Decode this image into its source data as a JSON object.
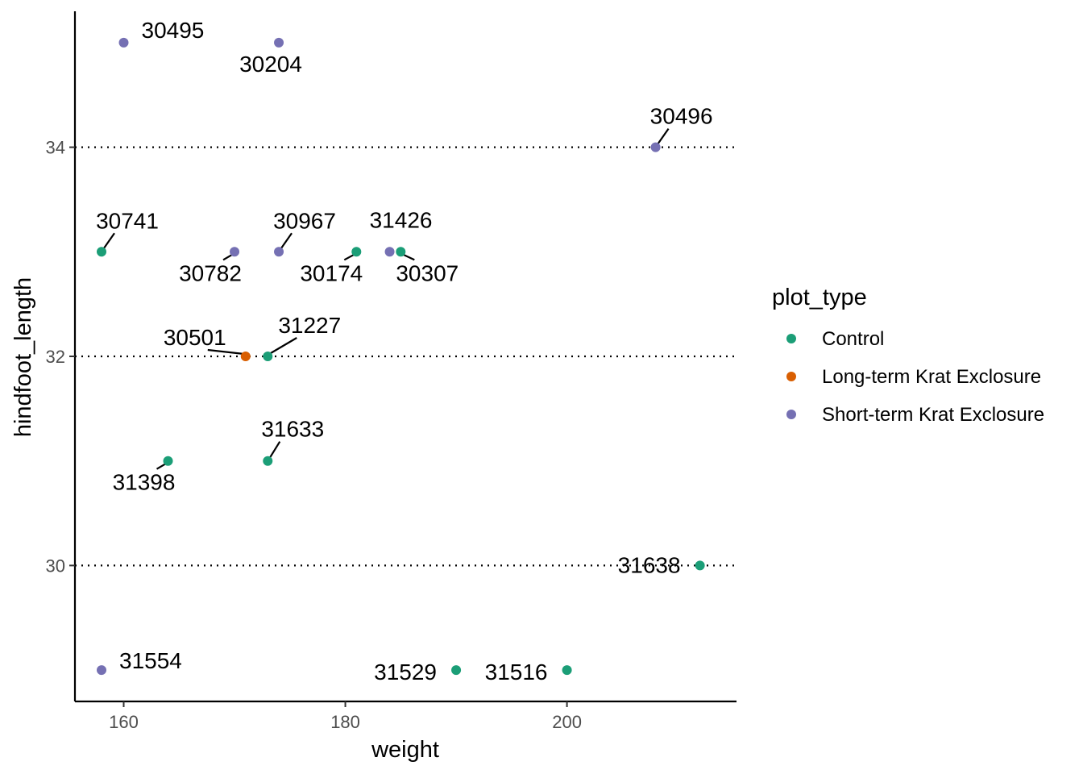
{
  "chart_data": {
    "type": "scatter",
    "xlabel": "weight",
    "ylabel": "hindfoot_length",
    "xlim": [
      155.6,
      215.3
    ],
    "ylim": [
      28.7,
      35.3
    ],
    "x_ticks": [
      160,
      180,
      200
    ],
    "y_ticks": [
      30,
      32,
      34
    ],
    "x_tick_labels": [
      "160",
      "180",
      "200"
    ],
    "y_tick_labels": [
      "30",
      "32",
      "34"
    ],
    "grid": "horizontal dotted at y ticks",
    "legend": {
      "title": "plot_type",
      "position": "right"
    },
    "series": [
      {
        "name": "Control",
        "color": "#1b9e77",
        "points": [
          {
            "id": "30741",
            "x": 158,
            "y": 33
          },
          {
            "id": "30174",
            "x": 181,
            "y": 33
          },
          {
            "id": "30307",
            "x": 185,
            "y": 33
          },
          {
            "id": "31227",
            "x": 173,
            "y": 32
          },
          {
            "id": "31398",
            "x": 164,
            "y": 31
          },
          {
            "id": "31633",
            "x": 173,
            "y": 31
          },
          {
            "id": "31638",
            "x": 212,
            "y": 30
          },
          {
            "id": "31529",
            "x": 190,
            "y": 29
          },
          {
            "id": "31516",
            "x": 200,
            "y": 29
          }
        ]
      },
      {
        "name": "Long-term Krat Exclosure",
        "color": "#d95f02",
        "points": [
          {
            "id": "30501",
            "x": 171,
            "y": 32
          }
        ]
      },
      {
        "name": "Short-term Krat Exclosure",
        "color": "#7570b3",
        "points": [
          {
            "id": "30495",
            "x": 160,
            "y": 35
          },
          {
            "id": "30204",
            "x": 174,
            "y": 35
          },
          {
            "id": "30496",
            "x": 208,
            "y": 34
          },
          {
            "id": "30782",
            "x": 170,
            "y": 33
          },
          {
            "id": "30967",
            "x": 174,
            "y": 33
          },
          {
            "id": "31426",
            "x": 184,
            "y": 33
          },
          {
            "id": "31554",
            "x": 158,
            "y": 29
          }
        ]
      }
    ]
  }
}
